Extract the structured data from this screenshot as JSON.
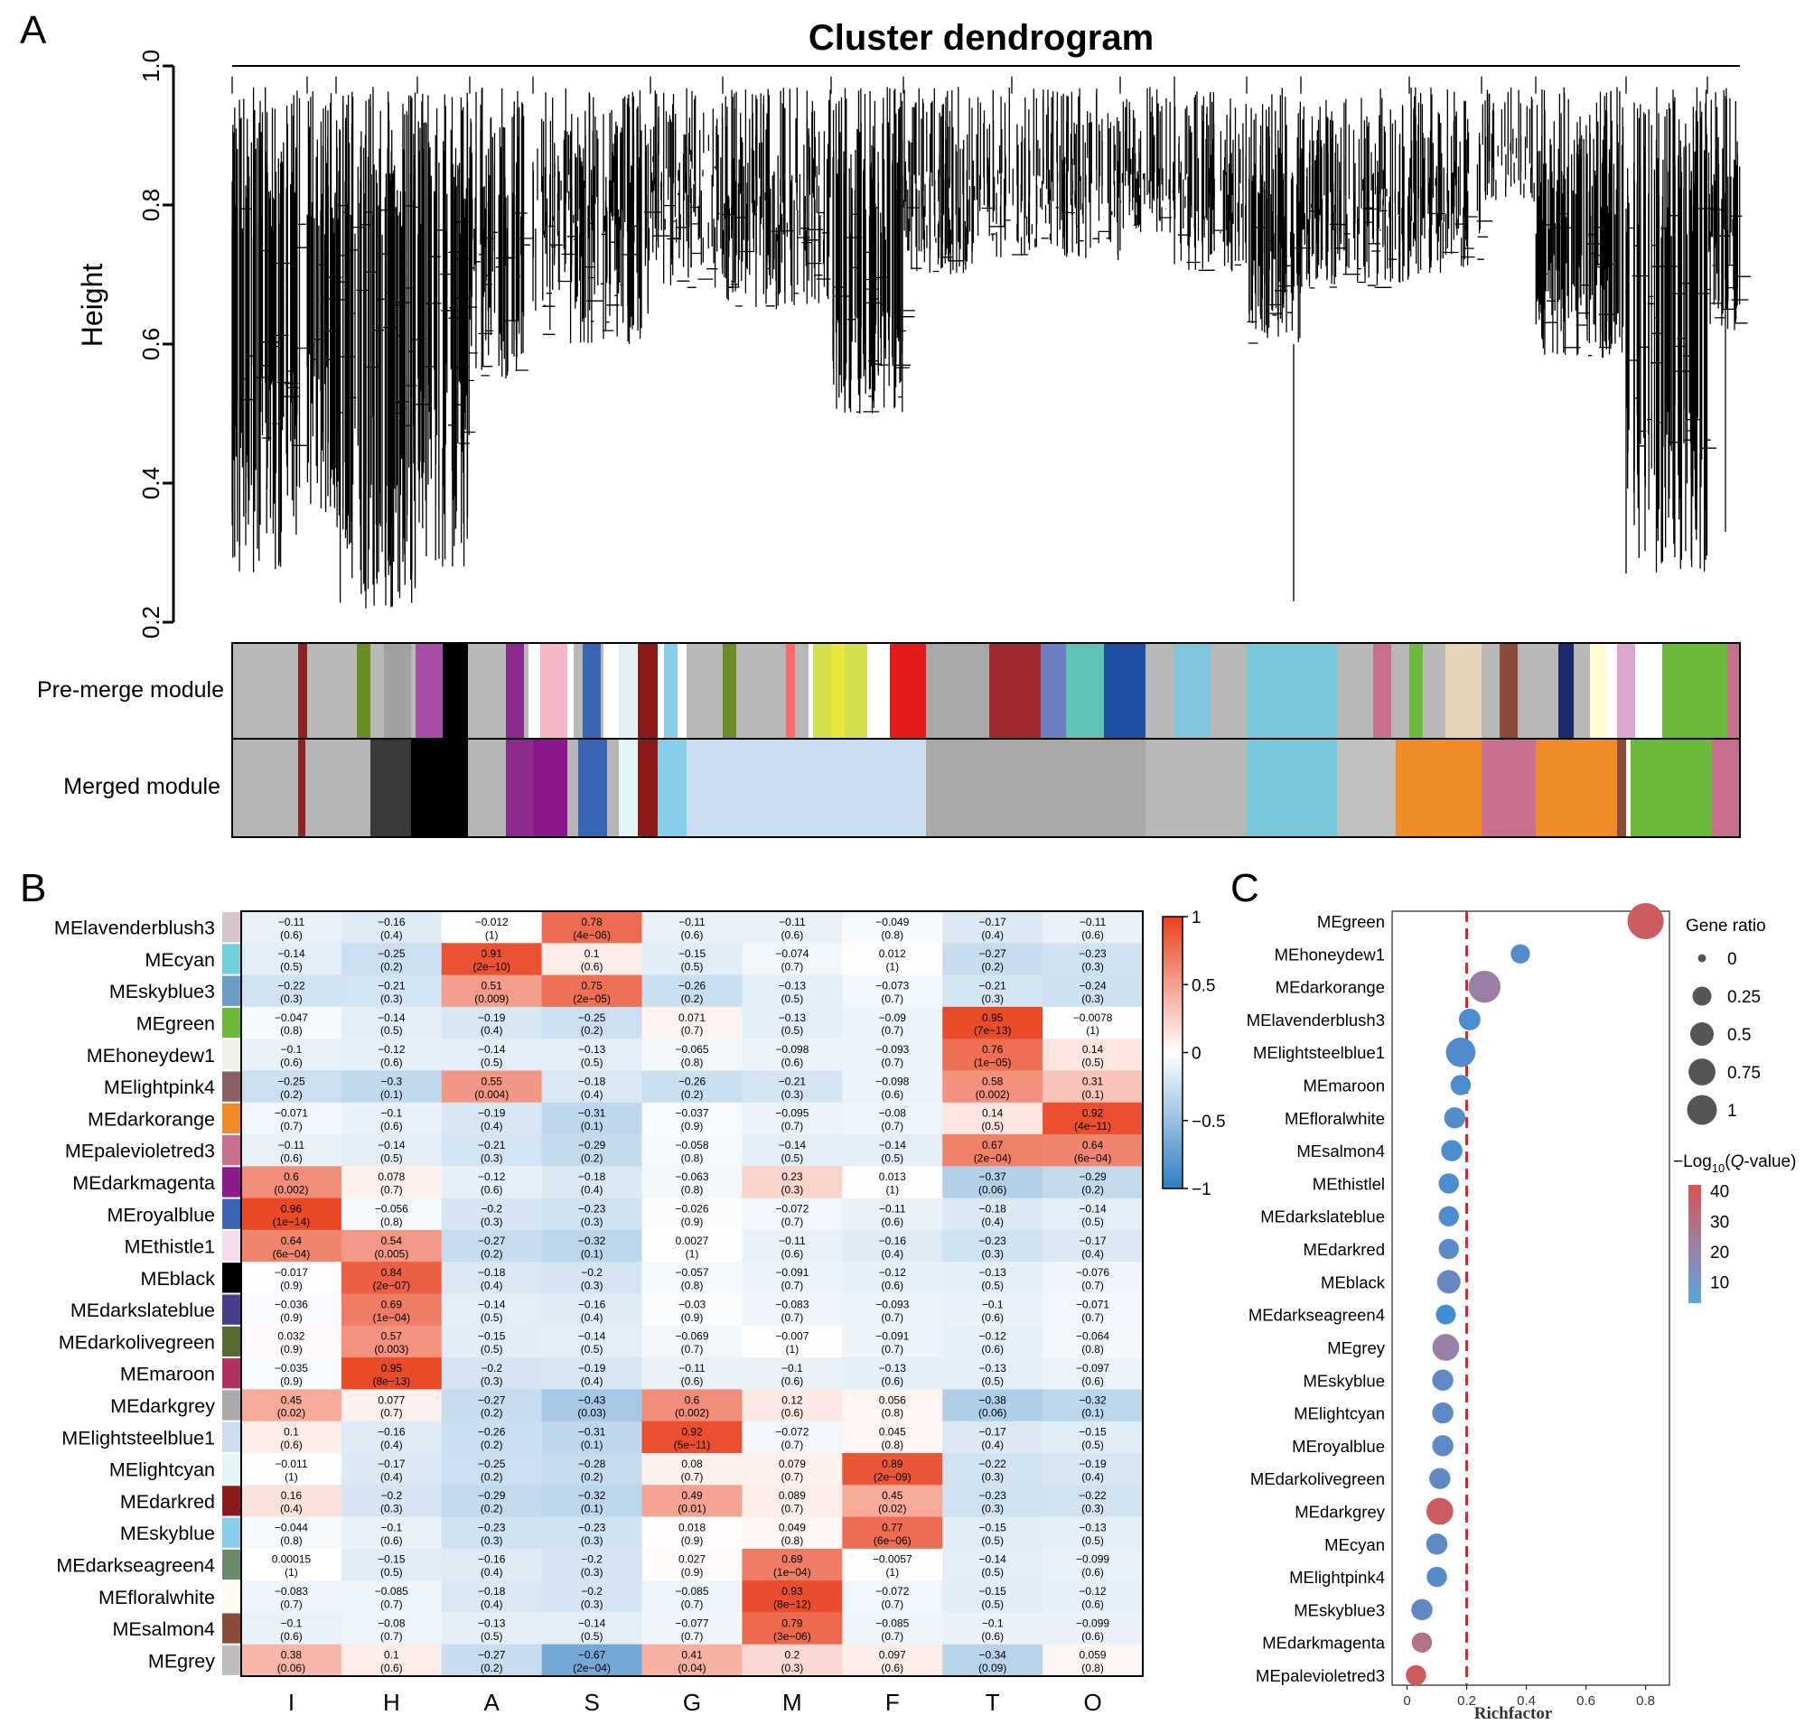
{
  "panel_labels": {
    "a": "A",
    "b": "B",
    "c": "C"
  },
  "dendrogram": {
    "title": "Cluster dendrogram",
    "ylabel": "Height",
    "yticks": [
      "0.2",
      "0.4",
      "0.6",
      "0.8",
      "1.0"
    ],
    "ylim": [
      0.2,
      1.0
    ],
    "track_labels": [
      "Pre-merge module",
      "Merged module"
    ]
  },
  "chart_data": [
    {
      "type": "heatmap",
      "title": "",
      "rows": [
        "MElavenderblush3",
        "MEcyan",
        "MEskyblue3",
        "MEgreen",
        "MEhoneydew1",
        "MElightpink4",
        "MEdarkorange",
        "MEpalevioletred3",
        "MEdarkmagenta",
        "MEroyalblue",
        "MEthistle1",
        "MEblack",
        "MEdarkslateblue",
        "MEdarkolivegreen",
        "MEmaroon",
        "MEdarkgrey",
        "MElightsteelblue1",
        "MElightcyan",
        "MEdarkred",
        "MEskyblue",
        "MEdarkseagreen4",
        "MEfloralwhite",
        "MEsalmon4",
        "MEgrey"
      ],
      "row_colors": [
        "#d8c5cb",
        "#6fd0dd",
        "#6b9ec7",
        "#6dba3a",
        "#f0f2ea",
        "#8b5e66",
        "#f08c28",
        "#c86f8f",
        "#8b1b8b",
        "#3a65b5",
        "#f6dcea",
        "#000000",
        "#483d8b",
        "#556b2f",
        "#b03060",
        "#a9a9a9",
        "#cadcf0",
        "#e0f5f5",
        "#8b1a1a",
        "#87ceeb",
        "#698b69",
        "#fffaf0",
        "#8b4c39",
        "#bebebe"
      ],
      "columns": [
        "I",
        "H",
        "A",
        "S",
        "G",
        "M",
        "F",
        "T",
        "O"
      ],
      "color_scale": {
        "min": -1,
        "max": 1,
        "ticks": [
          "1",
          "0.5",
          "0",
          "−0.5",
          "−1"
        ],
        "low": "#2f7fc1",
        "mid": "#ffffff",
        "high": "#e8411e"
      },
      "values": [
        [
          "-0.11",
          "-0.16",
          "-0.012",
          "0.78",
          "-0.11",
          "-0.11",
          "-0.049",
          "-0.17",
          "-0.11"
        ],
        [
          "-0.14",
          "-0.25",
          "0.91",
          "0.1",
          "-0.15",
          "-0.074",
          "0.012",
          "-0.27",
          "-0.23"
        ],
        [
          "-0.22",
          "-0.21",
          "0.51",
          "0.75",
          "-0.26",
          "-0.13",
          "-0.073",
          "-0.21",
          "-0.24"
        ],
        [
          "-0.047",
          "-0.14",
          "-0.19",
          "-0.25",
          "0.071",
          "-0.13",
          "-0.09",
          "0.95",
          "-0.0078"
        ],
        [
          "-0.1",
          "-0.12",
          "-0.14",
          "-0.13",
          "-0.065",
          "-0.098",
          "-0.093",
          "0.76",
          "0.14"
        ],
        [
          "-0.25",
          "-0.3",
          "0.55",
          "-0.18",
          "-0.26",
          "-0.21",
          "-0.098",
          "0.58",
          "0.31"
        ],
        [
          "-0.071",
          "-0.1",
          "-0.19",
          "-0.31",
          "-0.037",
          "-0.095",
          "-0.08",
          "0.14",
          "0.92"
        ],
        [
          "-0.11",
          "-0.14",
          "-0.21",
          "-0.29",
          "-0.058",
          "-0.14",
          "-0.14",
          "0.67",
          "0.64"
        ],
        [
          "0.6",
          "0.078",
          "-0.12",
          "-0.18",
          "-0.063",
          "0.23",
          "0.013",
          "-0.37",
          "-0.29"
        ],
        [
          "0.96",
          "-0.056",
          "-0.2",
          "-0.23",
          "-0.026",
          "-0.072",
          "-0.11",
          "-0.18",
          "-0.14"
        ],
        [
          "0.64",
          "0.54",
          "-0.27",
          "-0.32",
          "0.0027",
          "-0.11",
          "-0.16",
          "-0.23",
          "-0.17"
        ],
        [
          "-0.017",
          "0.84",
          "-0.18",
          "-0.2",
          "-0.057",
          "-0.091",
          "-0.12",
          "-0.13",
          "-0.076"
        ],
        [
          "-0.036",
          "0.69",
          "-0.14",
          "-0.16",
          "-0.03",
          "-0.083",
          "-0.093",
          "-0.1",
          "-0.071"
        ],
        [
          "0.032",
          "0.57",
          "-0.15",
          "-0.14",
          "-0.069",
          "-0.007",
          "-0.091",
          "-0.12",
          "-0.064"
        ],
        [
          "-0.035",
          "0.95",
          "-0.2",
          "-0.19",
          "-0.11",
          "-0.1",
          "-0.13",
          "-0.13",
          "-0.097"
        ],
        [
          "0.45",
          "0.077",
          "-0.27",
          "-0.43",
          "0.6",
          "0.12",
          "0.056",
          "-0.38",
          "-0.32"
        ],
        [
          "0.1",
          "-0.16",
          "-0.26",
          "-0.31",
          "0.92",
          "-0.072",
          "0.045",
          "-0.17",
          "-0.15"
        ],
        [
          "-0.011",
          "-0.17",
          "-0.25",
          "-0.28",
          "0.08",
          "0.079",
          "0.89",
          "-0.22",
          "-0.19"
        ],
        [
          "0.16",
          "-0.2",
          "-0.29",
          "-0.32",
          "0.49",
          "0.089",
          "0.45",
          "-0.23",
          "-0.22"
        ],
        [
          "-0.044",
          "-0.1",
          "-0.23",
          "-0.23",
          "0.018",
          "0.049",
          "0.77",
          "-0.15",
          "-0.13"
        ],
        [
          "0.00015",
          "-0.15",
          "-0.16",
          "-0.2",
          "0.027",
          "0.69",
          "-0.0057",
          "-0.14",
          "-0.099"
        ],
        [
          "-0.083",
          "-0.085",
          "-0.18",
          "-0.2",
          "-0.085",
          "0.93",
          "-0.072",
          "-0.15",
          "-0.12"
        ],
        [
          "-0.1",
          "-0.08",
          "-0.13",
          "-0.14",
          "-0.077",
          "0.79",
          "-0.085",
          "-0.1",
          "-0.099"
        ],
        [
          "0.38",
          "0.1",
          "-0.27",
          "-0.67",
          "0.41",
          "0.2",
          "0.097",
          "-0.34",
          "0.059"
        ]
      ],
      "pvalues": [
        [
          "(0.6)",
          "(0.4)",
          "(1)",
          "(4e−06)",
          "(0.6)",
          "(0.6)",
          "(0.8)",
          "(0.4)",
          "(0.6)"
        ],
        [
          "(0.5)",
          "(0.2)",
          "(2e−10)",
          "(0.6)",
          "(0.5)",
          "(0.7)",
          "(1)",
          "(0.2)",
          "(0.3)"
        ],
        [
          "(0.3)",
          "(0.3)",
          "(0.009)",
          "(2e−05)",
          "(0.2)",
          "(0.5)",
          "(0.7)",
          "(0.3)",
          "(0.3)"
        ],
        [
          "(0.8)",
          "(0.5)",
          "(0.4)",
          "(0.2)",
          "(0.7)",
          "(0.5)",
          "(0.7)",
          "(7e−13)",
          "(1)"
        ],
        [
          "(0.6)",
          "(0.6)",
          "(0.5)",
          "(0.5)",
          "(0.8)",
          "(0.6)",
          "(0.7)",
          "(1e−05)",
          "(0.5)"
        ],
        [
          "(0.2)",
          "(0.1)",
          "(0.004)",
          "(0.4)",
          "(0.2)",
          "(0.3)",
          "(0.6)",
          "(0.002)",
          "(0.1)"
        ],
        [
          "(0.7)",
          "(0.6)",
          "(0.4)",
          "(0.1)",
          "(0.9)",
          "(0.7)",
          "(0.7)",
          "(0.5)",
          "(4e−11)"
        ],
        [
          "(0.6)",
          "(0.5)",
          "(0.3)",
          "(0.2)",
          "(0.8)",
          "(0.5)",
          "(0.5)",
          "(2e−04)",
          "(6e−04)"
        ],
        [
          "(0.002)",
          "(0.7)",
          "(0.6)",
          "(0.4)",
          "(0.8)",
          "(0.3)",
          "(1)",
          "(0.06)",
          "(0.2)"
        ],
        [
          "(1e−14)",
          "(0.8)",
          "(0.3)",
          "(0.3)",
          "(0.9)",
          "(0.7)",
          "(0.6)",
          "(0.4)",
          "(0.5)"
        ],
        [
          "(6e−04)",
          "(0.005)",
          "(0.2)",
          "(0.1)",
          "(1)",
          "(0.6)",
          "(0.4)",
          "(0.3)",
          "(0.4)"
        ],
        [
          "(0.9)",
          "(2e−07)",
          "(0.4)",
          "(0.3)",
          "(0.8)",
          "(0.7)",
          "(0.6)",
          "(0.5)",
          "(0.7)"
        ],
        [
          "(0.9)",
          "(1e−04)",
          "(0.5)",
          "(0.4)",
          "(0.9)",
          "(0.7)",
          "(0.7)",
          "(0.6)",
          "(0.7)"
        ],
        [
          "(0.9)",
          "(0.003)",
          "(0.5)",
          "(0.5)",
          "(0.7)",
          "(1)",
          "(0.7)",
          "(0.6)",
          "(0.8)"
        ],
        [
          "(0.9)",
          "(8e−13)",
          "(0.3)",
          "(0.4)",
          "(0.6)",
          "(0.6)",
          "(0.6)",
          "(0.5)",
          "(0.6)"
        ],
        [
          "(0.02)",
          "(0.7)",
          "(0.2)",
          "(0.03)",
          "(0.002)",
          "(0.6)",
          "(0.8)",
          "(0.06)",
          "(0.1)"
        ],
        [
          "(0.6)",
          "(0.4)",
          "(0.2)",
          "(0.1)",
          "(5e−11)",
          "(0.7)",
          "(0.8)",
          "(0.4)",
          "(0.5)"
        ],
        [
          "(1)",
          "(0.4)",
          "(0.2)",
          "(0.2)",
          "(0.7)",
          "(0.7)",
          "(2e−09)",
          "(0.3)",
          "(0.4)"
        ],
        [
          "(0.4)",
          "(0.3)",
          "(0.2)",
          "(0.1)",
          "(0.01)",
          "(0.7)",
          "(0.02)",
          "(0.3)",
          "(0.3)"
        ],
        [
          "(0.8)",
          "(0.6)",
          "(0.3)",
          "(0.3)",
          "(0.9)",
          "(0.8)",
          "(6e−06)",
          "(0.5)",
          "(0.5)"
        ],
        [
          "(1)",
          "(0.5)",
          "(0.4)",
          "(0.3)",
          "(0.9)",
          "(1e−04)",
          "(1)",
          "(0.5)",
          "(0.6)"
        ],
        [
          "(0.7)",
          "(0.7)",
          "(0.4)",
          "(0.3)",
          "(0.7)",
          "(8e−12)",
          "(0.7)",
          "(0.5)",
          "(0.6)"
        ],
        [
          "(0.6)",
          "(0.7)",
          "(0.5)",
          "(0.5)",
          "(0.7)",
          "(3e−06)",
          "(0.7)",
          "(0.6)",
          "(0.6)"
        ],
        [
          "(0.06)",
          "(0.6)",
          "(0.2)",
          "(2e−04)",
          "(0.04)",
          "(0.3)",
          "(0.6)",
          "(0.09)",
          "(0.8)"
        ]
      ]
    },
    {
      "type": "scatter",
      "title": "",
      "xlabel": "Richfactor",
      "xlim": [
        -0.05,
        0.88
      ],
      "xticks": [
        0,
        0.2,
        0.4,
        0.6,
        0.8
      ],
      "reference_line_x": 0.2,
      "categories": [
        "MEgreen",
        "MEhoneydew1",
        "MEdarkorange",
        "MElavenderblush3",
        "MElightsteelblue1",
        "MEmaroon",
        "MEfloralwhite",
        "MEsalmon4",
        "MEthistlel",
        "MEdarkslateblue",
        "MEdarkred",
        "MEblack",
        "MEdarkseagreen4",
        "MEgrey",
        "MEskyblue",
        "MElightcyan",
        "MEroyalblue",
        "MEdarkolivegreen",
        "MEdarkgrey",
        "MEcyan",
        "MElightpink4",
        "MEskyblue3",
        "MEdarkmagenta",
        "MEpalevioletred3"
      ],
      "x": [
        0.8,
        0.38,
        0.26,
        0.21,
        0.18,
        0.18,
        0.16,
        0.15,
        0.14,
        0.14,
        0.14,
        0.14,
        0.13,
        0.13,
        0.12,
        0.12,
        0.12,
        0.11,
        0.11,
        0.1,
        0.1,
        0.05,
        0.05,
        0.03
      ],
      "gene_ratio": [
        0.7,
        0.1,
        0.5,
        0.15,
        0.4,
        0.12,
        0.14,
        0.14,
        0.12,
        0.12,
        0.12,
        0.2,
        0.11,
        0.3,
        0.14,
        0.14,
        0.14,
        0.14,
        0.3,
        0.14,
        0.12,
        0.14,
        0.12,
        0.12
      ],
      "neg_log10_q": [
        38,
        8,
        22,
        6,
        7,
        6,
        8,
        6,
        6,
        6,
        9,
        12,
        4,
        22,
        10,
        10,
        10,
        10,
        38,
        10,
        8,
        10,
        28,
        38
      ],
      "size_legend": {
        "title": "Gene ratio",
        "values": [
          "0",
          "0.25",
          "0.5",
          "0.75",
          "1"
        ]
      },
      "color_legend": {
        "title_prefix": "−Log",
        "title_sub": "10",
        "title_suffix": "(Q-value)",
        "title_italic": "Q",
        "ticks": [
          "40",
          "30",
          "20",
          "10"
        ],
        "range": [
          3,
          42
        ],
        "low": "#5aa6df",
        "high": "#d9534f"
      }
    }
  ]
}
